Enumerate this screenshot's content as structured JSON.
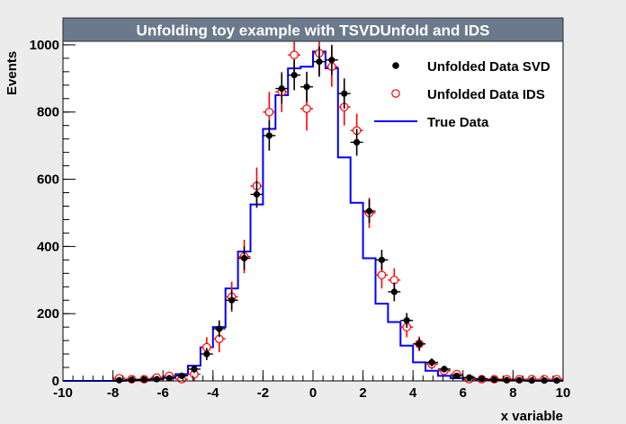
{
  "chart_data": {
    "type": "scatter",
    "title": "Unfolding toy example with TSVDUnfold and IDS",
    "xlabel": "x variable",
    "ylabel": "Events",
    "xlim": [
      -10,
      10
    ],
    "ylim": [
      0,
      1080
    ],
    "xticks": [
      "-10",
      "-8",
      "-6",
      "-4",
      "-2",
      "0",
      "2",
      "4",
      "6",
      "8",
      "10"
    ],
    "yticks": [
      "0",
      "200",
      "400",
      "600",
      "800",
      "1000"
    ],
    "legend_position": "top-right",
    "legend": [
      {
        "label": "Unfolded Data SVD",
        "marker": "filled-circle",
        "color": "#000000"
      },
      {
        "label": "Unfolded Data IDS",
        "marker": "open-circle",
        "color": "#ff0000"
      },
      {
        "label": "True Data",
        "marker": "line",
        "color": "#0000ff"
      }
    ],
    "bin_edges": [
      -10,
      -9.5,
      -9,
      -8.5,
      -8,
      -7.5,
      -7,
      -6.5,
      -6,
      -5.5,
      -5,
      -4.5,
      -4,
      -3.5,
      -3,
      -2.5,
      -2,
      -1.5,
      -1,
      -0.5,
      0,
      0.5,
      1,
      1.5,
      2,
      2.5,
      3,
      3.5,
      4,
      4.5,
      5,
      5.5,
      6,
      6.5,
      7,
      7.5,
      8,
      8.5,
      9,
      9.5,
      10
    ],
    "series": [
      {
        "name": "True Data",
        "style": "step",
        "color": "#0000ff",
        "values": [
          0,
          0,
          0,
          0,
          0,
          2,
          3,
          5,
          10,
          20,
          45,
          100,
          160,
          275,
          385,
          525,
          750,
          850,
          930,
          935,
          980,
          930,
          665,
          530,
          365,
          230,
          175,
          105,
          55,
          30,
          15,
          8,
          5,
          3,
          2,
          1,
          1,
          0,
          0,
          0
        ]
      },
      {
        "name": "Unfolded Data SVD",
        "style": "points",
        "color": "#000000",
        "x": [
          -7.75,
          -7.25,
          -6.75,
          -6.25,
          -5.75,
          -5.25,
          -4.75,
          -4.25,
          -3.75,
          -3.25,
          -2.75,
          -2.25,
          -1.75,
          -1.25,
          -0.75,
          -0.25,
          0.25,
          0.75,
          1.25,
          1.75,
          2.25,
          2.75,
          3.25,
          3.75,
          4.25,
          4.75,
          5.25,
          5.75,
          6.25,
          6.75,
          7.25,
          7.75,
          8.25,
          8.75,
          9.25,
          9.75
        ],
        "values": [
          2,
          3,
          4,
          5,
          8,
          15,
          35,
          80,
          155,
          240,
          365,
          555,
          730,
          870,
          910,
          875,
          950,
          955,
          855,
          710,
          505,
          360,
          265,
          180,
          110,
          55,
          35,
          15,
          10,
          6,
          4,
          2,
          2,
          1,
          1,
          1
        ],
        "errors": [
          3,
          3,
          4,
          4,
          6,
          8,
          12,
          18,
          25,
          30,
          35,
          40,
          45,
          45,
          45,
          45,
          45,
          45,
          45,
          40,
          35,
          30,
          28,
          22,
          18,
          12,
          10,
          8,
          6,
          4,
          3,
          3,
          3,
          3,
          3,
          3
        ]
      },
      {
        "name": "Unfolded Data IDS",
        "style": "points",
        "color": "#ff0000",
        "x": [
          -7.75,
          -7.25,
          -6.75,
          -6.25,
          -5.75,
          -5.25,
          -4.75,
          -4.25,
          -3.75,
          -3.25,
          -2.75,
          -2.25,
          -1.75,
          -1.25,
          -0.75,
          -0.25,
          0.25,
          0.75,
          1.25,
          1.75,
          2.25,
          2.75,
          3.25,
          3.75,
          4.25,
          4.75,
          5.25,
          5.75,
          6.25,
          6.75,
          7.25,
          7.75,
          8.25,
          8.75,
          9.25,
          9.75
        ],
        "values": [
          8,
          5,
          5,
          10,
          15,
          5,
          20,
          100,
          125,
          250,
          370,
          580,
          800,
          860,
          970,
          810,
          975,
          935,
          815,
          745,
          500,
          315,
          300,
          160,
          110,
          50,
          30,
          20,
          5,
          5,
          5,
          5,
          5,
          5,
          5,
          5
        ],
        "errors": [
          8,
          8,
          8,
          8,
          12,
          15,
          20,
          30,
          40,
          45,
          50,
          55,
          60,
          60,
          65,
          65,
          65,
          60,
          55,
          50,
          45,
          40,
          35,
          30,
          22,
          15,
          12,
          10,
          8,
          8,
          8,
          8,
          8,
          8,
          8,
          8
        ]
      }
    ]
  }
}
